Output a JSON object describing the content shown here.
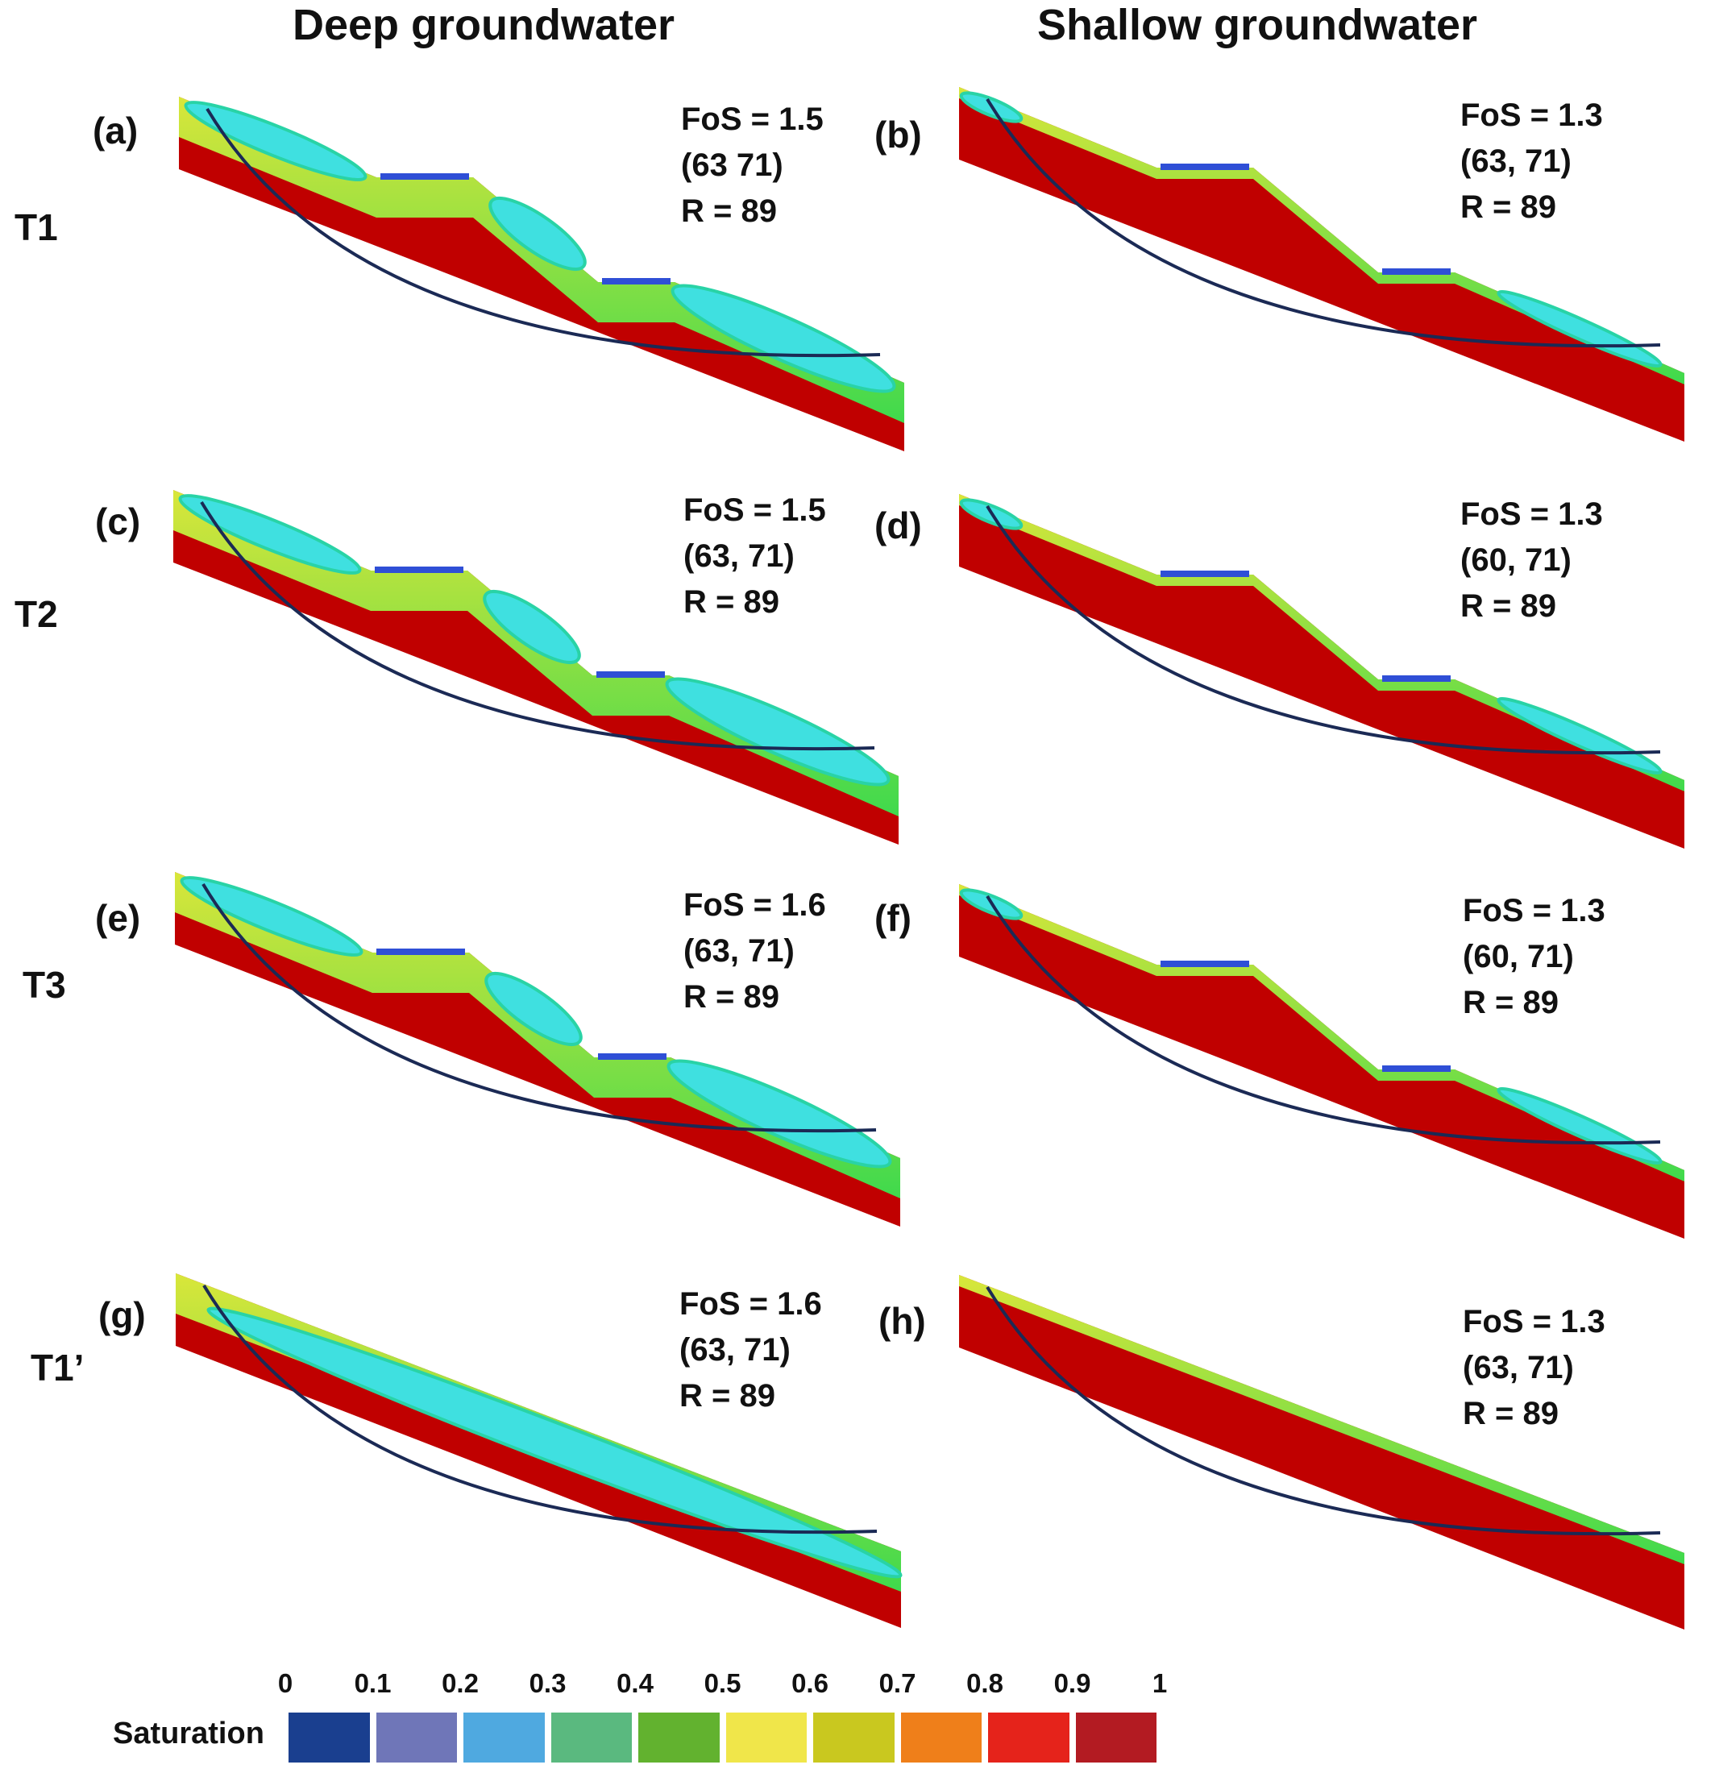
{
  "columns": {
    "deep": "Deep groundwater",
    "shallow": "Shallow groundwater"
  },
  "rows": [
    {
      "label": "T1"
    },
    {
      "label": "T2"
    },
    {
      "label": "T3"
    },
    {
      "label": "T1’"
    }
  ],
  "panels": [
    {
      "id": "a",
      "label": "(a)",
      "fos": "FoS = 1.5",
      "center": "(63 71)",
      "radius": "R = 89",
      "groundwater": "deep",
      "terrace": true
    },
    {
      "id": "b",
      "label": "(b)",
      "fos": "FoS = 1.3",
      "center": "(63, 71)",
      "radius": "R = 89",
      "groundwater": "shallow",
      "terrace": true
    },
    {
      "id": "c",
      "label": "(c)",
      "fos": "FoS = 1.5",
      "center": "(63, 71)",
      "radius": "R = 89",
      "groundwater": "deep",
      "terrace": true
    },
    {
      "id": "d",
      "label": "(d)",
      "fos": "FoS = 1.3",
      "center": "(60, 71)",
      "radius": "R = 89",
      "groundwater": "shallow",
      "terrace": true
    },
    {
      "id": "e",
      "label": "(e)",
      "fos": "FoS = 1.6",
      "center": "(63, 71)",
      "radius": "R = 89",
      "groundwater": "deep",
      "terrace": true
    },
    {
      "id": "f",
      "label": "(f)",
      "fos": "FoS = 1.3",
      "center": "(60, 71)",
      "radius": "R = 89",
      "groundwater": "shallow",
      "terrace": true
    },
    {
      "id": "g",
      "label": "(g)",
      "fos": "FoS = 1.6",
      "center": "(63, 71)",
      "radius": "R = 89",
      "groundwater": "deep",
      "terrace": false
    },
    {
      "id": "h",
      "label": "(h)",
      "fos": "FoS = 1.3",
      "center": "(63, 71)",
      "radius": "R = 89",
      "groundwater": "shallow",
      "terrace": false
    }
  ],
  "legend": {
    "title": "Saturation",
    "ticks": [
      "0",
      "0.1",
      "0.2",
      "0.3",
      "0.4",
      "0.5",
      "0.6",
      "0.7",
      "0.8",
      "0.9",
      "1"
    ],
    "colors": [
      "#1a3f8f",
      "#6f76b8",
      "#4fa9e0",
      "#5ab97f",
      "#62b22f",
      "#f0e64a",
      "#c9c81f",
      "#ef7f1a",
      "#e5231b",
      "#b31b22"
    ]
  }
}
